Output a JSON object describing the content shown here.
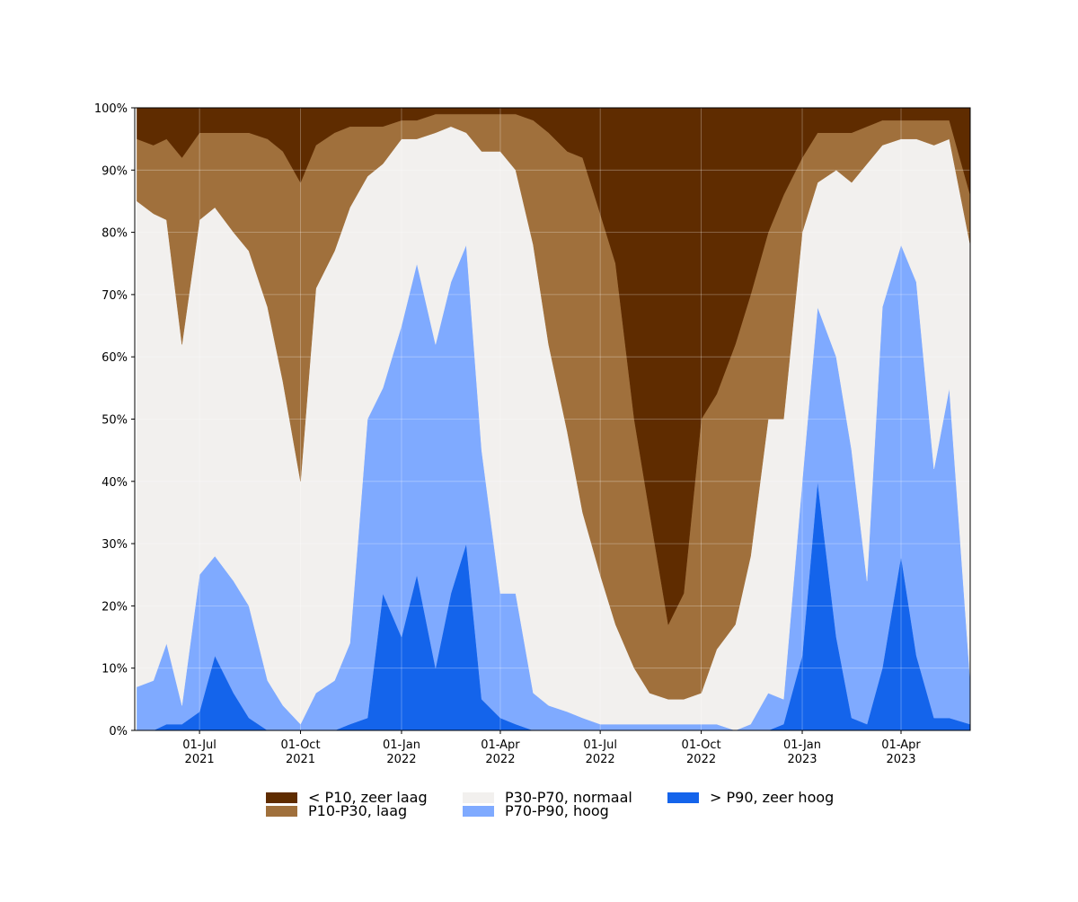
{
  "chart_data": {
    "type": "stacked-area",
    "x": [
      "2021-05-05",
      "2021-05-20",
      "2021-06-01",
      "2021-06-15",
      "2021-07-01",
      "2021-07-15",
      "2021-08-01",
      "2021-08-15",
      "2021-09-01",
      "2021-09-15",
      "2021-10-01",
      "2021-10-15",
      "2021-11-01",
      "2021-11-15",
      "2021-12-01",
      "2021-12-15",
      "2022-01-01",
      "2022-01-15",
      "2022-02-01",
      "2022-02-15",
      "2022-03-01",
      "2022-03-15",
      "2022-04-01",
      "2022-04-15",
      "2022-05-01",
      "2022-05-15",
      "2022-06-01",
      "2022-06-15",
      "2022-07-01",
      "2022-07-15",
      "2022-08-01",
      "2022-08-15",
      "2022-09-01",
      "2022-09-15",
      "2022-10-01",
      "2022-10-15",
      "2022-11-01",
      "2022-11-15",
      "2022-12-01",
      "2022-12-15",
      "2023-01-01",
      "2023-01-15",
      "2023-02-01",
      "2023-02-15",
      "2023-03-01",
      "2023-03-15",
      "2023-04-01",
      "2023-04-15",
      "2023-05-01",
      "2023-05-15",
      "2023-06-03"
    ],
    "series": [
      {
        "name": "> P90, zeer hoog",
        "color": "#1464eb",
        "values": [
          0,
          0,
          1,
          1,
          3,
          12,
          6,
          2,
          0,
          0,
          0,
          0,
          0,
          1,
          2,
          22,
          15,
          25,
          10,
          22,
          30,
          5,
          2,
          1,
          0,
          0,
          0,
          0,
          0,
          0,
          0,
          0,
          0,
          0,
          0,
          0,
          0,
          0,
          0,
          1,
          12,
          40,
          15,
          2,
          1,
          10,
          28,
          12,
          2,
          2,
          1
        ]
      },
      {
        "name": "P70-P90, hoog",
        "color": "#7faaff",
        "values": [
          7,
          8,
          13,
          3,
          22,
          16,
          18,
          18,
          8,
          4,
          1,
          6,
          8,
          13,
          48,
          33,
          50,
          50,
          52,
          50,
          48,
          40,
          20,
          21,
          6,
          4,
          3,
          2,
          1,
          1,
          1,
          1,
          1,
          1,
          1,
          1,
          0,
          1,
          6,
          4,
          28,
          28,
          45,
          43,
          23,
          58,
          50,
          60,
          40,
          53,
          7
        ]
      },
      {
        "name": "P30-P70, normaal",
        "color": "#f2f0ee",
        "values": [
          78,
          75,
          68,
          58,
          57,
          56,
          56,
          57,
          60,
          52,
          39,
          65,
          69,
          70,
          39,
          36,
          30,
          20,
          34,
          25,
          18,
          48,
          71,
          68,
          72,
          58,
          45,
          33,
          24,
          16,
          9,
          5,
          4,
          4,
          5,
          12,
          17,
          27,
          44,
          45,
          40,
          20,
          30,
          43,
          67,
          26,
          17,
          23,
          52,
          40,
          70
        ]
      },
      {
        "name": "P10-P30, laag",
        "color": "#a0703c",
        "values": [
          10,
          11,
          13,
          30,
          14,
          12,
          16,
          19,
          27,
          37,
          48,
          23,
          19,
          13,
          8,
          6,
          3,
          3,
          3,
          2,
          3,
          6,
          6,
          9,
          20,
          34,
          45,
          57,
          58,
          58,
          40,
          29,
          12,
          17,
          44,
          41,
          45,
          42,
          30,
          36,
          12,
          8,
          6,
          8,
          6,
          4,
          3,
          3,
          4,
          3,
          8
        ]
      },
      {
        "name": "< P10, zeer laag",
        "color": "#5f2c00",
        "values": [
          5,
          6,
          5,
          8,
          4,
          4,
          4,
          4,
          5,
          7,
          12,
          6,
          4,
          3,
          3,
          3,
          2,
          2,
          1,
          1,
          1,
          1,
          1,
          1,
          2,
          4,
          7,
          8,
          17,
          25,
          50,
          65,
          83,
          78,
          50,
          46,
          38,
          30,
          20,
          14,
          8,
          4,
          4,
          4,
          3,
          2,
          2,
          2,
          2,
          2,
          14
        ]
      }
    ],
    "xlim": [
      "2021-05-03",
      "2023-06-03"
    ],
    "xticks": [
      {
        "value": "2021-07-01",
        "label": "01-Jul 2021"
      },
      {
        "value": "2021-10-01",
        "label": "01-Oct 2021"
      },
      {
        "value": "2022-01-01",
        "label": "01-Jan 2022"
      },
      {
        "value": "2022-04-01",
        "label": "01-Apr 2022"
      },
      {
        "value": "2022-07-01",
        "label": "01-Jul 2022"
      },
      {
        "value": "2022-10-01",
        "label": "01-Oct 2022"
      },
      {
        "value": "2023-01-01",
        "label": "01-Jan 2023"
      },
      {
        "value": "2023-04-01",
        "label": "01-Apr 2023"
      }
    ],
    "ylim": [
      0,
      100
    ],
    "yticks": [
      {
        "value": 0,
        "label": "0%"
      },
      {
        "value": 10,
        "label": "10%"
      },
      {
        "value": 20,
        "label": "20%"
      },
      {
        "value": 30,
        "label": "30%"
      },
      {
        "value": 40,
        "label": "40%"
      },
      {
        "value": 50,
        "label": "50%"
      },
      {
        "value": 60,
        "label": "60%"
      },
      {
        "value": 70,
        "label": "70%"
      },
      {
        "value": 80,
        "label": "80%"
      },
      {
        "value": 90,
        "label": "90%"
      },
      {
        "value": 100,
        "label": "100%"
      }
    ],
    "grid": true,
    "legend": "bottom"
  }
}
